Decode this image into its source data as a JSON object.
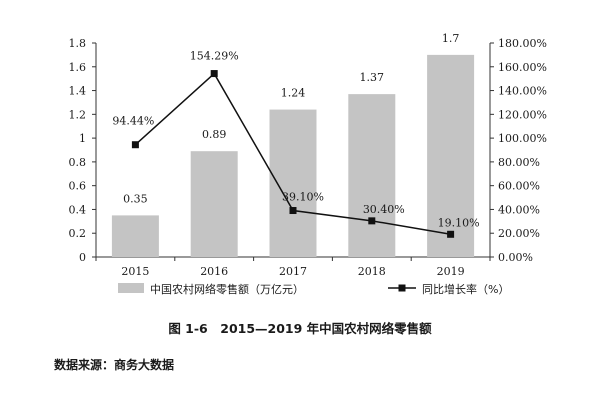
{
  "chart_data": {
    "type": "bar+line",
    "categories": [
      "2015",
      "2016",
      "2017",
      "2018",
      "2019"
    ],
    "bar_series": {
      "name": "中国农村网络零售额（万亿元）",
      "values": [
        0.35,
        0.89,
        1.24,
        1.37,
        1.7
      ],
      "labels": [
        "0.35",
        "0.89",
        "1.24",
        "1.37",
        "1.7"
      ],
      "color": "#c4c4c4"
    },
    "line_series": {
      "name": "同比增长率（%）",
      "values": [
        94.44,
        154.29,
        39.1,
        30.4,
        19.1
      ],
      "labels": [
        "94.44%",
        "154.29%",
        "39.10%",
        "30.40%",
        "19.10%"
      ],
      "color": "#111111"
    },
    "y_left": {
      "range": [
        0,
        1.8
      ],
      "ticks": [
        "0",
        "0.2",
        "0.4",
        "0.6",
        "0.8",
        "1",
        "1.2",
        "1.4",
        "1.6",
        "1.8"
      ]
    },
    "y_right": {
      "range": [
        0,
        180
      ],
      "ticks": [
        "0.00%",
        "20.00%",
        "40.00%",
        "60.00%",
        "80.00%",
        "100.00%",
        "120.00%",
        "140.00%",
        "160.00%",
        "180.00%"
      ]
    },
    "grid": false,
    "legend_position": "bottom"
  },
  "caption": "图 1-6　2015—2019 年中国农村网络零售额",
  "source": "数据来源：商务大数据"
}
